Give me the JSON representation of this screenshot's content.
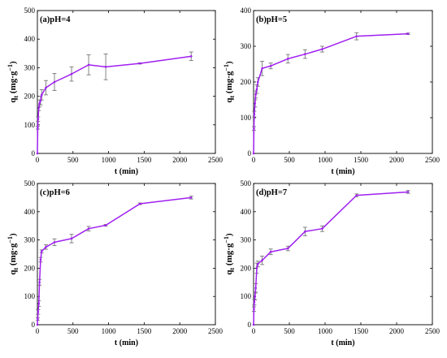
{
  "chart_data": [
    {
      "type": "line",
      "title": "(a)pH=4",
      "xlabel": "t (min)",
      "ylabel": "q",
      "ylabel_sub": "t",
      "ylabel_rest": " (mg·g",
      "ylabel_sup": "−1",
      "ylabel_end": ")",
      "xlim": [
        0,
        2500
      ],
      "ylim": [
        0,
        500
      ],
      "xticks": [
        0,
        500,
        1000,
        1500,
        2000,
        2500
      ],
      "yticks": [
        0,
        100,
        200,
        300,
        400,
        500
      ],
      "color": "#a020f0",
      "x": [
        0,
        5,
        10,
        20,
        30,
        45,
        60,
        120,
        240,
        480,
        720,
        960,
        1440,
        2160
      ],
      "y": [
        0,
        90,
        120,
        160,
        175,
        185,
        205,
        230,
        250,
        278,
        310,
        303,
        315,
        340
      ],
      "err": [
        0,
        5,
        8,
        10,
        12,
        15,
        18,
        25,
        30,
        25,
        35,
        45,
        2,
        15
      ]
    },
    {
      "type": "line",
      "title": "(b)pH=5",
      "xlabel": "t (min)",
      "ylabel": "q",
      "ylabel_sub": "t",
      "ylabel_rest": " (mg·g",
      "ylabel_sup": "−1",
      "ylabel_end": ")",
      "xlim": [
        0,
        2500
      ],
      "ylim": [
        0,
        400
      ],
      "xticks": [
        0,
        500,
        1000,
        1500,
        2000,
        2500
      ],
      "yticks": [
        0,
        100,
        200,
        300,
        400
      ],
      "color": "#a020f0",
      "x": [
        0,
        5,
        10,
        20,
        30,
        45,
        60,
        120,
        240,
        480,
        720,
        960,
        1440,
        2160
      ],
      "y": [
        0,
        70,
        110,
        140,
        165,
        180,
        200,
        238,
        245,
        265,
        278,
        292,
        328,
        335
      ],
      "err": [
        0,
        5,
        8,
        10,
        10,
        12,
        12,
        20,
        8,
        12,
        12,
        8,
        10,
        2
      ]
    },
    {
      "type": "line",
      "title": "(c)pH=6",
      "xlabel": "t (min)",
      "ylabel": "q",
      "ylabel_sub": "t",
      "ylabel_rest": " (mg·g",
      "ylabel_sup": "−1",
      "ylabel_end": ")",
      "xlim": [
        0,
        2500
      ],
      "ylim": [
        0,
        500
      ],
      "xticks": [
        0,
        500,
        1000,
        1500,
        2000,
        2500
      ],
      "yticks": [
        0,
        100,
        200,
        300,
        400,
        500
      ],
      "color": "#a020f0",
      "x": [
        0,
        5,
        10,
        20,
        30,
        45,
        60,
        120,
        240,
        480,
        720,
        960,
        1440,
        2160
      ],
      "y": [
        0,
        20,
        45,
        75,
        150,
        230,
        260,
        275,
        292,
        305,
        340,
        352,
        428,
        450
      ],
      "err": [
        0,
        5,
        8,
        10,
        10,
        8,
        5,
        8,
        12,
        15,
        8,
        3,
        3,
        5
      ]
    },
    {
      "type": "line",
      "title": "(d)pH=7",
      "xlabel": "t (min)",
      "ylabel": "q",
      "ylabel_sub": "t",
      "ylabel_rest": " (mg·g",
      "ylabel_sup": "−1",
      "ylabel_end": ")",
      "xlim": [
        0,
        2500
      ],
      "ylim": [
        0,
        500
      ],
      "xticks": [
        0,
        500,
        1000,
        1500,
        2000,
        2500
      ],
      "yticks": [
        0,
        100,
        200,
        300,
        400,
        500
      ],
      "color": "#a020f0",
      "x": [
        0,
        5,
        10,
        20,
        30,
        45,
        60,
        120,
        240,
        480,
        720,
        960,
        1440,
        2160
      ],
      "y": [
        0,
        55,
        80,
        100,
        130,
        200,
        215,
        228,
        258,
        270,
        330,
        340,
        458,
        470
      ],
      "err": [
        0,
        8,
        10,
        12,
        15,
        18,
        10,
        15,
        10,
        8,
        15,
        10,
        5,
        5
      ]
    }
  ]
}
